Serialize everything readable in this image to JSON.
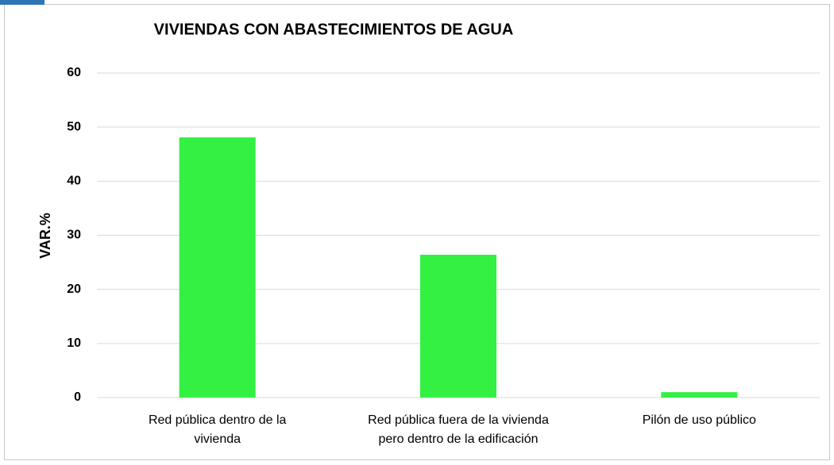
{
  "chart_data": {
    "type": "bar",
    "title": "VIVIENDAS CON ABASTECIMIENTOS DE AGUA",
    "y_label": "VAR.%",
    "categories": [
      "Red pública dentro de la vivienda",
      "Red pública fuera de la vivienda pero dentro de la edificación",
      "Pilón de uso público"
    ],
    "values": [
      48.1,
      26.4,
      1.0
    ],
    "color": "#33f043",
    "ylim": [
      0,
      60
    ],
    "yticks": [
      0,
      10,
      20,
      30,
      40,
      50,
      60
    ],
    "grid": true
  }
}
